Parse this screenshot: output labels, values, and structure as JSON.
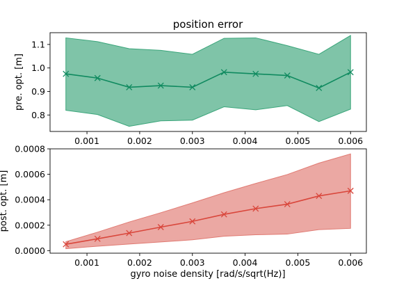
{
  "chart_data": [
    {
      "type": "line",
      "title": "position error",
      "xlabel": "",
      "ylabel": "pre. opt. [m]",
      "xlim": [
        0.0003,
        0.0063
      ],
      "ylim": [
        0.73,
        1.15
      ],
      "xticks": [
        0.001,
        0.002,
        0.003,
        0.004,
        0.005,
        0.006
      ],
      "xtick_labels": [
        "0.001",
        "0.002",
        "0.003",
        "0.004",
        "0.005",
        "0.006"
      ],
      "yticks": [
        0.8,
        0.9,
        1.0,
        1.1
      ],
      "ytick_labels": [
        "0.8",
        "0.9",
        "1.0",
        "1.1"
      ],
      "line_color": "#0f8a5f",
      "band_color": "#3aa57a",
      "series": [
        {
          "x": [
            0.0006,
            0.0012,
            0.0018,
            0.0024,
            0.003,
            0.0036,
            0.0042,
            0.0048,
            0.0054,
            0.006
          ],
          "mean": [
            0.975,
            0.957,
            0.918,
            0.925,
            0.918,
            0.982,
            0.975,
            0.968,
            0.915,
            0.982
          ],
          "upper": [
            1.128,
            1.112,
            1.082,
            1.075,
            1.058,
            1.126,
            1.128,
            1.095,
            1.058,
            1.138
          ],
          "lower": [
            0.82,
            0.802,
            0.752,
            0.775,
            0.778,
            0.835,
            0.822,
            0.84,
            0.772,
            0.825
          ]
        }
      ]
    },
    {
      "type": "line",
      "title": "",
      "xlabel": "gyro noise density [rad/s/sqrt(Hz)]",
      "ylabel": "post. opt. [m]",
      "xlim": [
        0.0003,
        0.0063
      ],
      "ylim": [
        -2e-05,
        0.0008
      ],
      "xticks": [
        0.001,
        0.002,
        0.003,
        0.004,
        0.005,
        0.006
      ],
      "xtick_labels": [
        "0.001",
        "0.002",
        "0.003",
        "0.004",
        "0.005",
        "0.006"
      ],
      "yticks": [
        0.0,
        0.0002,
        0.0004,
        0.0006,
        0.0008
      ],
      "ytick_labels": [
        "0.0000",
        "0.0002",
        "0.0004",
        "0.0006",
        "0.0008"
      ],
      "line_color": "#d9463b",
      "band_color": "#e07a72",
      "series": [
        {
          "x": [
            0.0006,
            0.0012,
            0.0018,
            0.0024,
            0.003,
            0.0036,
            0.0042,
            0.0048,
            0.0054,
            0.006
          ],
          "mean": [
            5e-05,
            9.3e-05,
            0.000138,
            0.000185,
            0.00023,
            0.000285,
            0.00033,
            0.000365,
            0.00043,
            0.00047
          ],
          "upper": [
            7e-05,
            0.000145,
            0.000225,
            0.000298,
            0.000375,
            0.000455,
            0.000528,
            0.000598,
            0.000688,
            0.00076
          ],
          "lower": [
            1.5e-05,
            3.5e-05,
            5.2e-05,
            6.8e-05,
            8.5e-05,
            0.000113,
            0.000125,
            0.00013,
            0.000165,
            0.000175
          ]
        }
      ]
    }
  ]
}
